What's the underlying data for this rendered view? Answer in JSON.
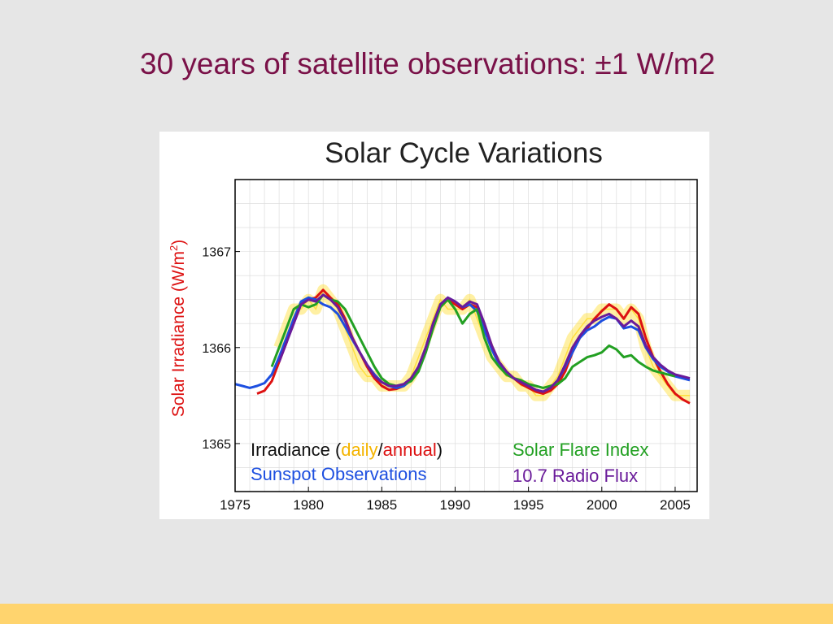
{
  "slide": {
    "title": "30 years of satellite observations: ±1 W/m2"
  },
  "colors": {
    "background": "#e6e6e6",
    "title": "#7a1148",
    "footer_bar": "#ffd46e",
    "daily": "#ffdd33",
    "annual": "#dd1111",
    "sunspot": "#1d4fe0",
    "flare": "#22a022",
    "radio": "#6a1b9a"
  },
  "chart_data": {
    "type": "line",
    "title": "Solar Cycle Variations",
    "ylabel_text": "Solar Irradiance (W/m",
    "ylabel_sup": "2",
    "ylabel_close": ")",
    "xlim": [
      1975,
      2006.5
    ],
    "ylim": [
      1364.5,
      1367.75
    ],
    "xticks": [
      1975,
      1980,
      1985,
      1990,
      1995,
      2000,
      2005
    ],
    "yticks": [
      1365,
      1366,
      1367
    ],
    "legend": {
      "placement": "bottom",
      "irradiance_prefix": "Irradiance (",
      "daily": "daily",
      "slash": "/",
      "annual": "annual",
      "irradiance_suffix": ")",
      "sunspot": "Sunspot Observations",
      "flare": "Solar Flare Index",
      "radio": "10.7 Radio Flux"
    },
    "series": [
      {
        "key": "daily",
        "name": "daily",
        "color": "#ffdd33",
        "x": [
          1978.0,
          1978.5,
          1979.0,
          1979.5,
          1980.0,
          1980.5,
          1981.0,
          1981.5,
          1982.0,
          1982.5,
          1983.0,
          1983.5,
          1984.0,
          1984.5,
          1985.0,
          1985.5,
          1986.0,
          1986.5,
          1987.0,
          1987.5,
          1988.0,
          1988.5,
          1989.0,
          1989.5,
          1990.0,
          1990.5,
          1991.0,
          1991.5,
          1992.0,
          1992.5,
          1993.0,
          1993.5,
          1994.0,
          1994.5,
          1995.0,
          1995.5,
          1996.0,
          1996.5,
          1997.0,
          1997.5,
          1998.0,
          1998.5,
          1999.0,
          1999.5,
          2000.0,
          2000.5,
          2001.0,
          2001.5,
          2002.0,
          2002.5,
          2003.0,
          2003.5,
          2004.0,
          2004.5,
          2005.0,
          2005.5,
          2006.0
        ],
        "y": [
          1366.0,
          1366.2,
          1366.4,
          1366.4,
          1366.5,
          1366.4,
          1366.6,
          1366.5,
          1366.4,
          1366.2,
          1366.0,
          1365.8,
          1365.7,
          1365.7,
          1365.6,
          1365.6,
          1365.6,
          1365.6,
          1365.7,
          1365.9,
          1366.1,
          1366.3,
          1366.5,
          1366.4,
          1366.4,
          1366.4,
          1366.5,
          1366.3,
          1366.1,
          1365.9,
          1365.8,
          1365.7,
          1365.7,
          1365.6,
          1365.6,
          1365.5,
          1365.5,
          1365.6,
          1365.7,
          1365.9,
          1366.1,
          1366.2,
          1366.3,
          1366.3,
          1366.4,
          1366.4,
          1366.4,
          1366.3,
          1366.4,
          1366.3,
          1366.0,
          1365.8,
          1365.7,
          1365.6,
          1365.5,
          1365.5,
          1365.5
        ]
      },
      {
        "key": "annual",
        "name": "annual",
        "color": "#dd1111",
        "x": [
          1976.5,
          1977.0,
          1977.5,
          1978.0,
          1978.5,
          1979.0,
          1979.5,
          1980.0,
          1980.5,
          1981.0,
          1981.5,
          1982.0,
          1982.5,
          1983.0,
          1983.5,
          1984.0,
          1984.5,
          1985.0,
          1985.5,
          1986.0,
          1986.5,
          1987.0,
          1987.5,
          1988.0,
          1988.5,
          1989.0,
          1989.5,
          1990.0,
          1990.5,
          1991.0,
          1991.5,
          1992.0,
          1992.5,
          1993.0,
          1993.5,
          1994.0,
          1994.5,
          1995.0,
          1995.5,
          1996.0,
          1996.5,
          1997.0,
          1997.5,
          1998.0,
          1998.5,
          1999.0,
          1999.5,
          2000.0,
          2000.5,
          2001.0,
          2001.5,
          2002.0,
          2002.5,
          2003.0,
          2003.5,
          2004.0,
          2004.5,
          2005.0,
          2005.5,
          2006.0
        ],
        "y": [
          1365.52,
          1365.55,
          1365.65,
          1365.85,
          1366.05,
          1366.3,
          1366.45,
          1366.5,
          1366.52,
          1366.6,
          1366.52,
          1366.45,
          1366.3,
          1366.1,
          1365.95,
          1365.8,
          1365.68,
          1365.6,
          1365.56,
          1365.57,
          1365.6,
          1365.68,
          1365.8,
          1366.0,
          1366.25,
          1366.45,
          1366.5,
          1366.45,
          1366.4,
          1366.45,
          1366.42,
          1366.2,
          1366.0,
          1365.85,
          1365.75,
          1365.68,
          1365.62,
          1365.58,
          1365.54,
          1365.52,
          1365.55,
          1365.62,
          1365.75,
          1365.95,
          1366.1,
          1366.2,
          1366.3,
          1366.38,
          1366.45,
          1366.4,
          1366.3,
          1366.42,
          1366.35,
          1366.1,
          1365.9,
          1365.75,
          1365.62,
          1365.52,
          1365.46,
          1365.42
        ]
      },
      {
        "key": "sunspot",
        "name": "Sunspot Observations",
        "color": "#1d4fe0",
        "x": [
          1975.0,
          1975.5,
          1976.0,
          1976.5,
          1977.0,
          1977.5,
          1978.0,
          1978.5,
          1979.0,
          1979.5,
          1980.0,
          1980.5,
          1981.0,
          1981.5,
          1982.0,
          1982.5,
          1983.0,
          1983.5,
          1984.0,
          1984.5,
          1985.0,
          1985.5,
          1986.0,
          1986.5,
          1987.0,
          1987.5,
          1988.0,
          1988.5,
          1989.0,
          1989.5,
          1990.0,
          1990.5,
          1991.0,
          1991.5,
          1992.0,
          1992.5,
          1993.0,
          1993.5,
          1994.0,
          1994.5,
          1995.0,
          1995.5,
          1996.0,
          1996.5,
          1997.0,
          1997.5,
          1998.0,
          1998.5,
          1999.0,
          1999.5,
          2000.0,
          2000.5,
          2001.0,
          2001.5,
          2002.0,
          2002.5,
          2003.0,
          2003.5,
          2004.0,
          2004.5,
          2005.0,
          2005.5,
          2006.0
        ],
        "y": [
          1365.62,
          1365.6,
          1365.58,
          1365.6,
          1365.63,
          1365.72,
          1365.9,
          1366.1,
          1366.3,
          1366.48,
          1366.52,
          1366.5,
          1366.45,
          1366.42,
          1366.35,
          1366.22,
          1366.08,
          1365.95,
          1365.82,
          1365.72,
          1365.64,
          1365.6,
          1365.58,
          1365.6,
          1365.66,
          1365.8,
          1366.0,
          1366.25,
          1366.45,
          1366.52,
          1366.48,
          1366.42,
          1366.45,
          1366.38,
          1366.18,
          1365.98,
          1365.82,
          1365.72,
          1365.68,
          1365.64,
          1365.6,
          1365.56,
          1365.54,
          1365.58,
          1365.66,
          1365.8,
          1365.95,
          1366.1,
          1366.18,
          1366.22,
          1366.28,
          1366.32,
          1366.3,
          1366.2,
          1366.22,
          1366.18,
          1366.0,
          1365.88,
          1365.8,
          1365.75,
          1365.7,
          1365.68,
          1365.66
        ]
      },
      {
        "key": "flare",
        "name": "Solar Flare Index",
        "color": "#22a022",
        "x": [
          1977.5,
          1978.0,
          1978.5,
          1979.0,
          1979.5,
          1980.0,
          1980.5,
          1981.0,
          1981.5,
          1982.0,
          1982.5,
          1983.0,
          1983.5,
          1984.0,
          1984.5,
          1985.0,
          1985.5,
          1986.0,
          1986.5,
          1987.0,
          1987.5,
          1988.0,
          1988.5,
          1989.0,
          1989.5,
          1990.0,
          1990.5,
          1991.0,
          1991.5,
          1992.0,
          1992.5,
          1993.0,
          1993.5,
          1994.0,
          1994.5,
          1995.0,
          1995.5,
          1996.0,
          1996.5,
          1997.0,
          1997.5,
          1998.0,
          1998.5,
          1999.0,
          1999.5,
          2000.0,
          2000.5,
          2001.0,
          2001.5,
          2002.0,
          2002.5,
          2003.0,
          2003.5,
          2004.0,
          2004.5,
          2005.0
        ],
        "y": [
          1365.8,
          1366.0,
          1366.2,
          1366.4,
          1366.45,
          1366.42,
          1366.45,
          1366.55,
          1366.5,
          1366.48,
          1366.4,
          1366.25,
          1366.1,
          1365.95,
          1365.8,
          1365.68,
          1365.62,
          1365.6,
          1365.62,
          1365.65,
          1365.75,
          1365.95,
          1366.2,
          1366.42,
          1366.5,
          1366.4,
          1366.25,
          1366.35,
          1366.4,
          1366.1,
          1365.9,
          1365.8,
          1365.72,
          1365.68,
          1365.66,
          1365.62,
          1365.6,
          1365.58,
          1365.6,
          1365.62,
          1365.68,
          1365.8,
          1365.85,
          1365.9,
          1365.92,
          1365.95,
          1366.02,
          1365.98,
          1365.9,
          1365.92,
          1365.85,
          1365.8,
          1365.76,
          1365.74,
          1365.72,
          1365.7
        ]
      },
      {
        "key": "radio",
        "name": "10.7 Radio Flux",
        "color": "#6a1b9a",
        "x": [
          1978.0,
          1978.5,
          1979.0,
          1979.5,
          1980.0,
          1980.5,
          1981.0,
          1981.5,
          1982.0,
          1982.5,
          1983.0,
          1983.5,
          1984.0,
          1984.5,
          1985.0,
          1985.5,
          1986.0,
          1986.5,
          1987.0,
          1987.5,
          1988.0,
          1988.5,
          1989.0,
          1989.5,
          1990.0,
          1990.5,
          1991.0,
          1991.5,
          1992.0,
          1992.5,
          1993.0,
          1993.5,
          1994.0,
          1994.5,
          1995.0,
          1995.5,
          1996.0,
          1996.5,
          1997.0,
          1997.5,
          1998.0,
          1998.5,
          1999.0,
          1999.5,
          2000.0,
          2000.5,
          2001.0,
          2001.5,
          2002.0,
          2002.5,
          2003.0,
          2003.5,
          2004.0,
          2004.5,
          2005.0,
          2005.5,
          2006.0
        ],
        "y": [
          1365.85,
          1366.05,
          1366.25,
          1366.45,
          1366.5,
          1366.48,
          1366.55,
          1366.5,
          1366.42,
          1366.28,
          1366.1,
          1365.95,
          1365.82,
          1365.7,
          1365.64,
          1365.6,
          1365.6,
          1365.62,
          1365.68,
          1365.8,
          1366.0,
          1366.25,
          1366.45,
          1366.52,
          1366.48,
          1366.42,
          1366.48,
          1366.45,
          1366.25,
          1366.02,
          1365.85,
          1365.75,
          1365.68,
          1365.64,
          1365.6,
          1365.56,
          1365.54,
          1365.58,
          1365.66,
          1365.82,
          1366.0,
          1366.12,
          1366.22,
          1366.28,
          1366.32,
          1366.35,
          1366.3,
          1366.22,
          1366.28,
          1366.22,
          1366.02,
          1365.9,
          1365.82,
          1365.76,
          1365.72,
          1365.7,
          1365.68
        ]
      }
    ]
  }
}
